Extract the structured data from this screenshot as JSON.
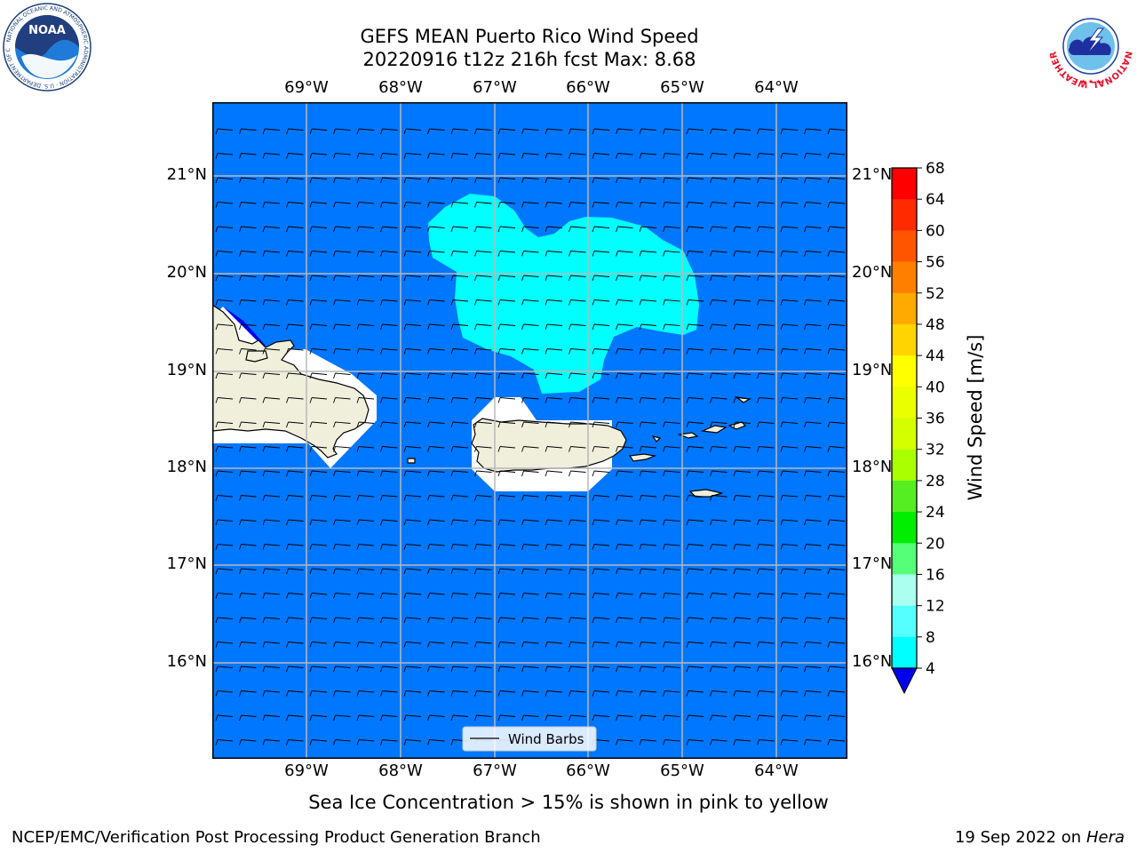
{
  "header": {
    "title_line1": "GEFS MEAN Puerto Rico Wind Speed",
    "title_line2": "20220916 t12z 216h fcst   Max: 8.68"
  },
  "logos": {
    "noaa_text": "NOAA",
    "noaa_ring_text": "NATIONAL OCEANIC AND ATMOSPHERIC ADMINISTRATION · U.S. DEPARTMENT OF COMMERCE",
    "nws_ring_text": "NATIONAL WEATHER SERVICE"
  },
  "map": {
    "lon_labels": [
      "69°W",
      "68°W",
      "67°W",
      "66°W",
      "65°W",
      "64°W"
    ],
    "lat_labels": [
      "21°N",
      "20°N",
      "19°N",
      "18°N",
      "17°N",
      "16°N"
    ],
    "ocean_color": "#0077ff",
    "land_color": "#efefdc",
    "highlight_color": "#00ffff",
    "legend_label": "Wind Barbs",
    "barb_direction": "from east",
    "barb_speed_ms": 6
  },
  "colorbar": {
    "label": "Wind Speed [m/s]",
    "ticks": [
      "68",
      "64",
      "60",
      "56",
      "52",
      "48",
      "44",
      "40",
      "36",
      "32",
      "28",
      "24",
      "20",
      "16",
      "12",
      "8",
      "4"
    ],
    "colors": [
      "#ff0000",
      "#ff2a00",
      "#ff5500",
      "#ff8000",
      "#ffaa00",
      "#ffd400",
      "#ffff00",
      "#eaff00",
      "#d4ff00",
      "#aaff00",
      "#55ee22",
      "#00ee00",
      "#55ff77",
      "#aaffee",
      "#55ffff",
      "#00ffff",
      "#0077ff"
    ],
    "under_color": "#0000ee"
  },
  "note": "Sea Ice Concentration > 15% is shown in pink to yellow",
  "footer": {
    "left": "NCEP/EMC/Verification Post Processing Product Generation Branch",
    "right_date": "19 Sep 2022 on",
    "right_host": "Hera"
  }
}
